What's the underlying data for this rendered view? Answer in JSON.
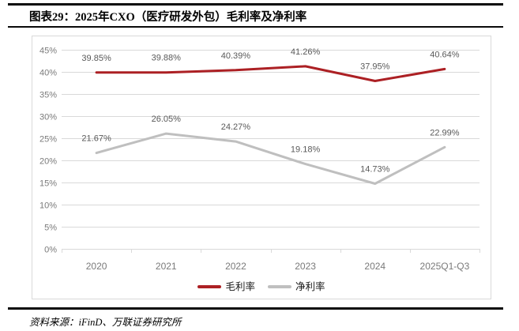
{
  "header": {
    "title": "图表29：2025年CXO（医疗研发外包）毛利率及净利率"
  },
  "footer": {
    "source": "资料来源：iFinD、万联证券研究所"
  },
  "chart_data": {
    "type": "line",
    "title": "2025年CXO（医疗研发外包）毛利率及净利率",
    "categories": [
      "2020",
      "2021",
      "2022",
      "2023",
      "2024",
      "2025Q1-Q3"
    ],
    "series": [
      {
        "name": "毛利率",
        "color": "#AC2024",
        "values": [
          39.85,
          39.88,
          40.39,
          41.26,
          37.95,
          40.64
        ],
        "labels": [
          "39.85%",
          "39.88%",
          "40.39%",
          "41.26%",
          "37.95%",
          "40.64%"
        ]
      },
      {
        "name": "净利率",
        "color": "#BFBFBF",
        "values": [
          21.67,
          26.05,
          24.27,
          19.18,
          14.73,
          22.99
        ],
        "labels": [
          "21.67%",
          "26.05%",
          "24.27%",
          "19.18%",
          "14.73%",
          "22.99%"
        ]
      }
    ],
    "y_axis": {
      "min": 0,
      "max": 45,
      "step": 5,
      "tick_suffix": "%",
      "tick_labels": [
        "0%",
        "5%",
        "10%",
        "15%",
        "20%",
        "25%",
        "30%",
        "35%",
        "40%",
        "45%"
      ]
    },
    "x_axis": {
      "tick_labels": [
        "2020",
        "2021",
        "2022",
        "2023",
        "2024",
        "2025Q1-Q3"
      ]
    },
    "grid": true,
    "legend_position": "bottom",
    "style_colors": {
      "grid": "#D9D9D9",
      "axis_text": "#7A7A7A",
      "data_label": "#595959",
      "rule": "#0A0A0A",
      "card_border": "#D9D9D9"
    }
  }
}
